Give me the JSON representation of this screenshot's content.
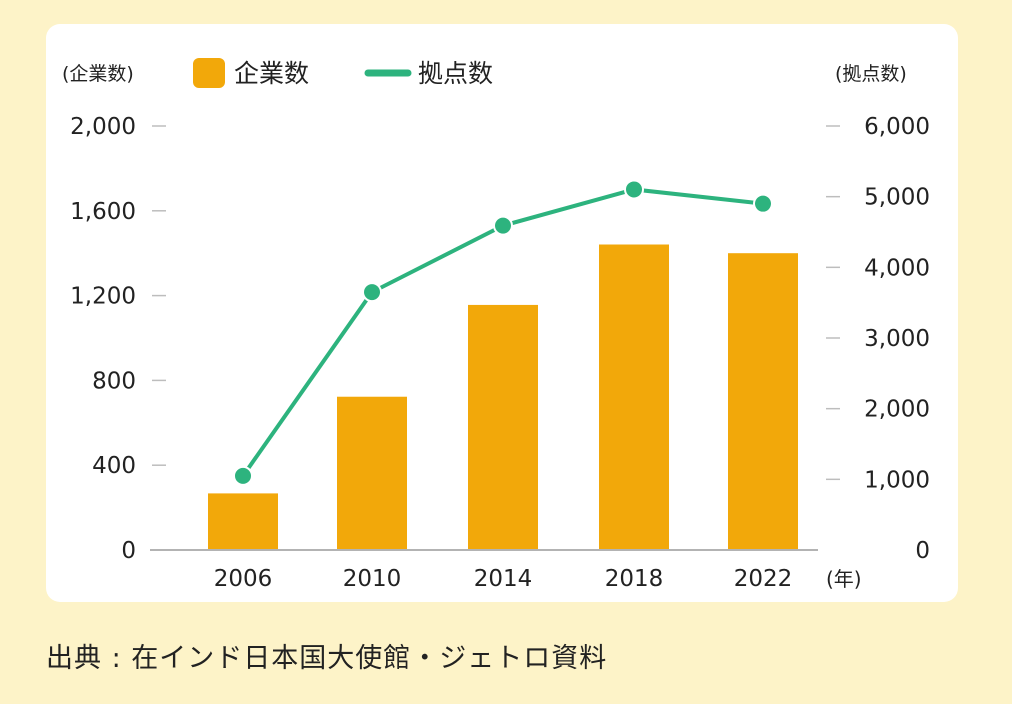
{
  "chart_data": {
    "type": "bar",
    "title": "",
    "categories": [
      "2006",
      "2010",
      "2014",
      "2018",
      "2022"
    ],
    "x_unit": "(年)",
    "left_axis": {
      "label": "(企業数)",
      "ylim": [
        0,
        2000
      ],
      "ticks": [
        "2,000",
        "1,600",
        "1,200",
        "800",
        "400",
        "0"
      ],
      "tick_values": [
        2000,
        1600,
        1200,
        800,
        400,
        0
      ]
    },
    "right_axis": {
      "label": "(拠点数)",
      "ylim": [
        0,
        6000
      ],
      "ticks": [
        "6,000",
        "5,000",
        "4,000",
        "3,000",
        "2,000",
        "1,000",
        "0"
      ],
      "tick_values": [
        6000,
        5000,
        4000,
        3000,
        2000,
        1000,
        0
      ]
    },
    "series": [
      {
        "name": "企業数",
        "type": "bar",
        "axis": "left",
        "color": "#f2a80a",
        "values": [
          267,
          723,
          1156,
          1441,
          1400
        ]
      },
      {
        "name": "拠点数",
        "type": "line",
        "axis": "right",
        "color": "#2db37e",
        "values": [
          1049,
          3649,
          4590,
          5102,
          4901
        ]
      }
    ],
    "legend_position": "top-left",
    "grid": false
  },
  "source_note": "出典 : 在インド日本国大使館・ジェトロ資料"
}
